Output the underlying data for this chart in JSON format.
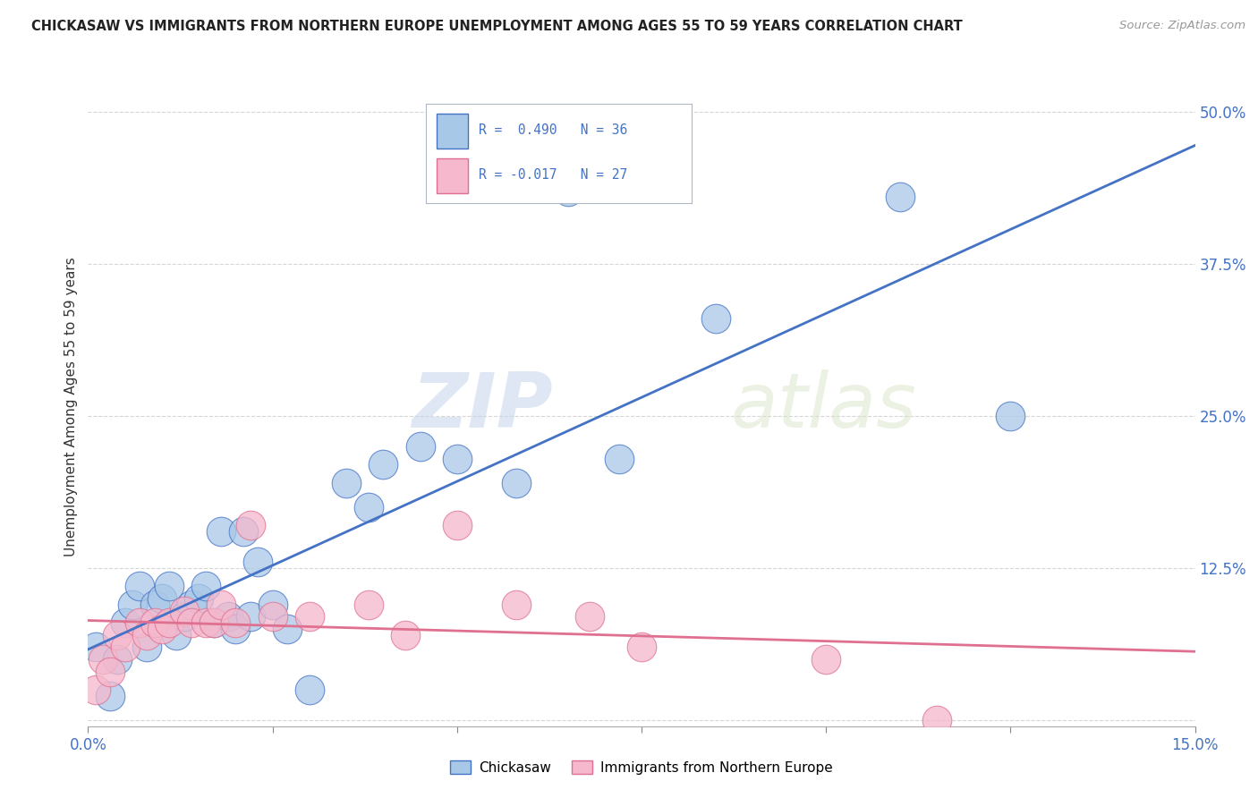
{
  "title": "CHICKASAW VS IMMIGRANTS FROM NORTHERN EUROPE UNEMPLOYMENT AMONG AGES 55 TO 59 YEARS CORRELATION CHART",
  "source": "Source: ZipAtlas.com",
  "ylabel": "Unemployment Among Ages 55 to 59 years",
  "xlim": [
    0,
    0.15
  ],
  "ylim": [
    -0.005,
    0.52
  ],
  "xticks": [
    0.0,
    0.025,
    0.05,
    0.075,
    0.1,
    0.125,
    0.15
  ],
  "xticklabels": [
    "0.0%",
    "",
    "",
    "",
    "",
    "",
    "15.0%"
  ],
  "yticks": [
    0.0,
    0.125,
    0.25,
    0.375,
    0.5
  ],
  "yticklabels": [
    "",
    "12.5%",
    "25.0%",
    "37.5%",
    "50.0%"
  ],
  "chickasaw_r": 0.49,
  "chickasaw_n": 36,
  "immigrant_r": -0.017,
  "immigrant_n": 27,
  "chickasaw_color": "#a8c8e8",
  "immigrant_color": "#f5b8cc",
  "trend_chickasaw_color": "#4472c4",
  "trend_immigrant_color": "#e07090",
  "watermark_zip": "ZIP",
  "watermark_atlas": "atlas",
  "chickasaw_x": [
    0.001,
    0.003,
    0.004,
    0.005,
    0.006,
    0.007,
    0.008,
    0.009,
    0.01,
    0.011,
    0.012,
    0.013,
    0.014,
    0.015,
    0.016,
    0.017,
    0.018,
    0.019,
    0.02,
    0.021,
    0.022,
    0.023,
    0.025,
    0.027,
    0.03,
    0.035,
    0.038,
    0.04,
    0.045,
    0.05,
    0.058,
    0.065,
    0.072,
    0.085,
    0.11,
    0.125
  ],
  "chickasaw_y": [
    0.06,
    0.02,
    0.05,
    0.08,
    0.095,
    0.11,
    0.06,
    0.095,
    0.1,
    0.11,
    0.07,
    0.085,
    0.095,
    0.1,
    0.11,
    0.08,
    0.155,
    0.085,
    0.075,
    0.155,
    0.085,
    0.13,
    0.095,
    0.075,
    0.025,
    0.195,
    0.175,
    0.21,
    0.225,
    0.215,
    0.195,
    0.435,
    0.215,
    0.33,
    0.43,
    0.25
  ],
  "immigrant_x": [
    0.001,
    0.002,
    0.003,
    0.004,
    0.005,
    0.007,
    0.008,
    0.009,
    0.01,
    0.011,
    0.013,
    0.014,
    0.016,
    0.017,
    0.018,
    0.02,
    0.022,
    0.025,
    0.03,
    0.038,
    0.043,
    0.05,
    0.058,
    0.068,
    0.075,
    0.1,
    0.115
  ],
  "immigrant_y": [
    0.025,
    0.05,
    0.04,
    0.07,
    0.06,
    0.08,
    0.07,
    0.08,
    0.075,
    0.08,
    0.09,
    0.08,
    0.08,
    0.08,
    0.095,
    0.08,
    0.16,
    0.085,
    0.085,
    0.095,
    0.07,
    0.16,
    0.095,
    0.085,
    0.06,
    0.05,
    0.0
  ]
}
